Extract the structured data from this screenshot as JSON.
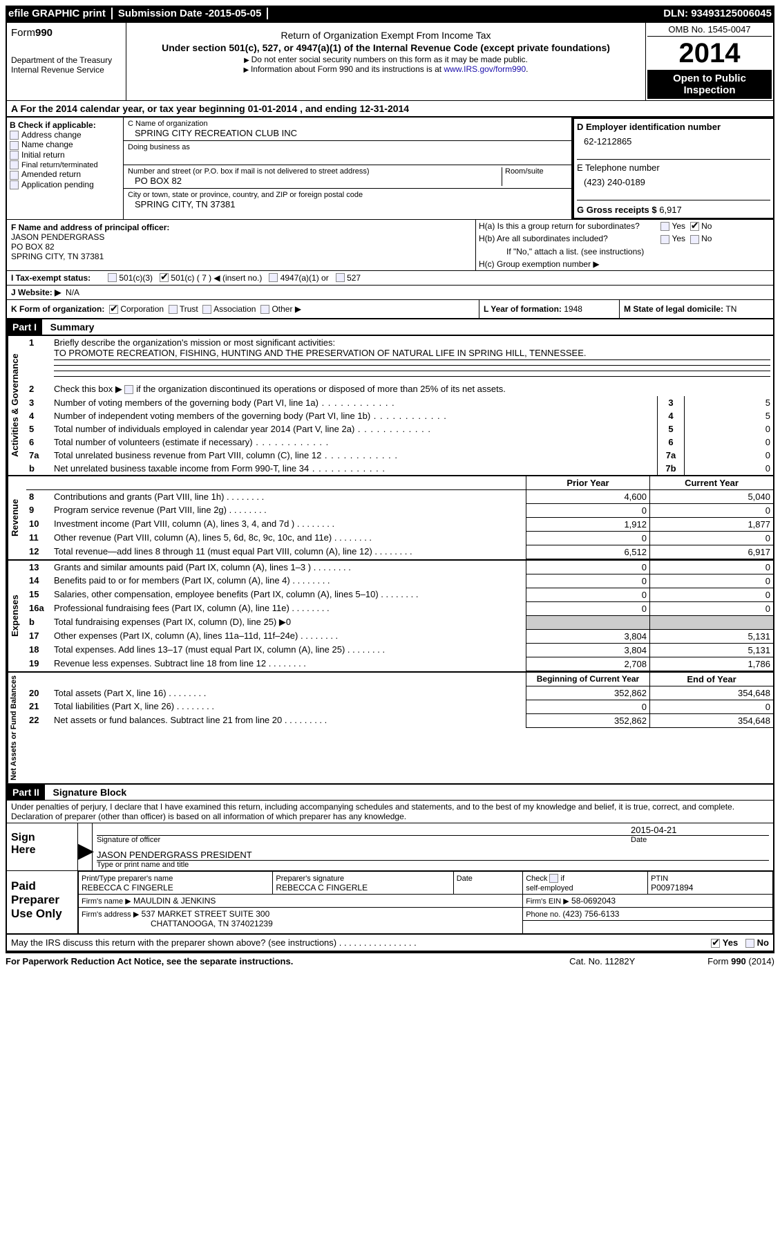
{
  "topbar": {
    "efile": "efile GRAPHIC print",
    "subdate_label": "Submission Date - ",
    "subdate": "2015-05-05",
    "dln_label": "DLN: ",
    "dln": "93493125006045"
  },
  "header": {
    "form_label": "Form",
    "form_no": "990",
    "dept1": "Department of the Treasury",
    "dept2": "Internal Revenue Service",
    "title1": "Return of Organization Exempt From Income Tax",
    "title2": "Under section 501(c), 527, or 4947(a)(1) of the Internal Revenue Code (except private foundations)",
    "hint1": "Do not enter social security numbers on this form as it may be made public.",
    "hint2_pre": "Information about Form 990 and its instructions is at ",
    "hint2_link": "www.IRS.gov/form990",
    "omb": "OMB No. 1545-0047",
    "year": "2014",
    "inspect1": "Open to Public",
    "inspect2": "Inspection"
  },
  "sectionA": {
    "pre": "A  For the 2014 calendar year, or tax year beginning ",
    "begin": "01-01-2014",
    "mid": " , and ending ",
    "end": "12-31-2014"
  },
  "colB": {
    "heading": "B Check if applicable:",
    "items": [
      "Address change",
      "Name change",
      "Initial return",
      "Final return/terminated",
      "Amended return",
      "Application pending"
    ]
  },
  "colC": {
    "name_lbl": "C Name of organization",
    "name": "SPRING CITY RECREATION CLUB INC",
    "dba_lbl": "Doing business as",
    "dba": "",
    "street_lbl": "Number and street (or P.O. box if mail is not delivered to street address)",
    "room_lbl": "Room/suite",
    "street": "PO BOX 82",
    "city_lbl": "City or town, state or province, country, and ZIP or foreign postal code",
    "city": "SPRING CITY, TN  37381"
  },
  "colD": {
    "ein_lbl": "D Employer identification number",
    "ein": "62-1212865",
    "tel_lbl": "E Telephone number",
    "tel": "(423) 240-0189",
    "gross_lbl": "G Gross receipts $ ",
    "gross": "6,917"
  },
  "colF": {
    "lbl": "F  Name and address of principal officer:",
    "name": "JASON PENDERGRASS",
    "street": "PO BOX 82",
    "city": "SPRING CITY, TN  37381"
  },
  "colH": {
    "a": "H(a)  Is this a group return for subordinates?",
    "b": "H(b)  Are all subordinates included?",
    "bnote": "If \"No,\" attach a list. (see instructions)",
    "c": "H(c)  Group exemption number ▶",
    "yes": "Yes",
    "no": "No"
  },
  "rowI": {
    "lbl": "I  Tax-exempt status:",
    "o1": "501(c)(3)",
    "o2": "501(c) ( 7 ) ◀ (insert no.)",
    "o3": "4947(a)(1) or",
    "o4": "527"
  },
  "rowJ": {
    "lbl": "J  Website: ▶",
    "val": "N/A"
  },
  "rowK": {
    "lbl": "K Form of organization:",
    "o1": "Corporation",
    "o2": "Trust",
    "o3": "Association",
    "o4": "Other ▶",
    "L": "L Year of formation: ",
    "Lv": "1948",
    "M": "M State of legal domicile: ",
    "Mv": "TN"
  },
  "part1": {
    "hdr": "Part I",
    "title": "Summary",
    "q1": "Briefly describe the organization's mission or most significant activities:",
    "mission": "TO PROMOTE RECREATION, FISHING, HUNTING AND THE PRESERVATION OF NATURAL LIFE IN SPRING HILL, TENNESSEE.",
    "q2": "Check this box ▶        if the organization discontinued its operations or disposed of more than 25% of its net assets.",
    "rows_gov": [
      {
        "n": "3",
        "t": "Number of voting members of the governing body (Part VI, line 1a)",
        "v": "5"
      },
      {
        "n": "4",
        "t": "Number of independent voting members of the governing body (Part VI, line 1b)",
        "v": "5"
      },
      {
        "n": "5",
        "t": "Total number of individuals employed in calendar year 2014 (Part V, line 2a)",
        "v": "0"
      },
      {
        "n": "6",
        "t": "Total number of volunteers (estimate if necessary)",
        "v": "0"
      },
      {
        "n": "7a",
        "t": "Total unrelated business revenue from Part VIII, column (C), line 12",
        "v": "0"
      },
      {
        "n": "b",
        "t": "Net unrelated business taxable income from Form 990-T, line 34",
        "nl": "7b",
        "v": "0"
      }
    ],
    "py": "Prior Year",
    "cy": "Current Year",
    "rows_rev": [
      {
        "n": "8",
        "t": "Contributions and grants (Part VIII, line 1h)",
        "p": "4,600",
        "c": "5,040"
      },
      {
        "n": "9",
        "t": "Program service revenue (Part VIII, line 2g)",
        "p": "0",
        "c": "0"
      },
      {
        "n": "10",
        "t": "Investment income (Part VIII, column (A), lines 3, 4, and 7d )",
        "p": "1,912",
        "c": "1,877"
      },
      {
        "n": "11",
        "t": "Other revenue (Part VIII, column (A), lines 5, 6d, 8c, 9c, 10c, and 11e)",
        "p": "0",
        "c": "0"
      },
      {
        "n": "12",
        "t": "Total revenue—add lines 8 through 11 (must equal Part VIII, column (A), line 12)",
        "p": "6,512",
        "c": "6,917"
      }
    ],
    "rows_exp": [
      {
        "n": "13",
        "t": "Grants and similar amounts paid (Part IX, column (A), lines 1–3 )",
        "p": "0",
        "c": "0"
      },
      {
        "n": "14",
        "t": "Benefits paid to or for members (Part IX, column (A), line 4)",
        "p": "0",
        "c": "0"
      },
      {
        "n": "15",
        "t": "Salaries, other compensation, employee benefits (Part IX, column (A), lines 5–10)",
        "p": "0",
        "c": "0"
      },
      {
        "n": "16a",
        "t": "Professional fundraising fees (Part IX, column (A), line 11e)",
        "p": "0",
        "c": "0"
      },
      {
        "n": "b",
        "t": "Total fundraising expenses (Part IX, column (D), line 25) ▶0",
        "p": "",
        "c": "",
        "grey": true,
        "noborder": true
      },
      {
        "n": "17",
        "t": "Other expenses (Part IX, column (A), lines 11a–11d, 11f–24e)",
        "p": "3,804",
        "c": "5,131"
      },
      {
        "n": "18",
        "t": "Total expenses. Add lines 13–17 (must equal Part IX, column (A), line 25)",
        "p": "3,804",
        "c": "5,131"
      },
      {
        "n": "19",
        "t": "Revenue less expenses. Subtract line 18 from line 12",
        "p": "2,708",
        "c": "1,786"
      }
    ],
    "bcy": "Beginning of Current Year",
    "ecy": "End of Year",
    "rows_net": [
      {
        "n": "20",
        "t": "Total assets (Part X, line 16)",
        "p": "352,862",
        "c": "354,648"
      },
      {
        "n": "21",
        "t": "Total liabilities (Part X, line 26)",
        "p": "0",
        "c": "0"
      },
      {
        "n": "22",
        "t": "Net assets or fund balances. Subtract line 21 from line 20 .",
        "p": "352,862",
        "c": "354,648"
      }
    ],
    "side1": "Activities & Governance",
    "side2": "Revenue",
    "side3": "Expenses",
    "side4": "Net Assets or Fund Balances"
  },
  "part2": {
    "hdr": "Part II",
    "title": "Signature Block",
    "perjury": "Under penalties of perjury, I declare that I have examined this return, including accompanying schedules and statements, and to the best of my knowledge and belief, it is true, correct, and complete. Declaration of preparer (other than officer) is based on all information of which preparer has any knowledge.",
    "sign_here": "Sign Here",
    "sig_lbl": "Signature of officer",
    "date_lbl": "Date",
    "sig_date": "2015-04-21",
    "name_title": "JASON PENDERGRASS PRESIDENT",
    "name_title_lbl": "Type or print name and title",
    "paid": "Paid Preparer Use Only",
    "prep_name_lbl": "Print/Type preparer's name",
    "prep_name": "REBECCA C FINGERLE",
    "prep_sig_lbl": "Preparer's signature",
    "prep_sig": "REBECCA C FINGERLE",
    "prep_date_lbl": "Date",
    "self_lbl": "Check         if self-employed",
    "ptin_lbl": "PTIN",
    "ptin": "P00971894",
    "firm_name_lbl": "Firm's name      ▶",
    "firm_name": "MAULDIN & JENKINS",
    "firm_ein_lbl": "Firm's EIN ▶",
    "firm_ein": "58-0692043",
    "firm_addr_lbl": "Firm's address ▶",
    "firm_addr": "537 MARKET STREET SUITE 300",
    "firm_city": "CHATTANOOGA, TN  374021239",
    "phone_lbl": "Phone no. ",
    "phone": "(423) 756-6133",
    "discuss": "May the IRS discuss this return with the preparer shown above? (see instructions)",
    "yes": "Yes",
    "no": "No"
  },
  "footer": {
    "left": "For Paperwork Reduction Act Notice, see the separate instructions.",
    "mid": "Cat. No. 11282Y",
    "right": "Form 990 (2014)"
  }
}
